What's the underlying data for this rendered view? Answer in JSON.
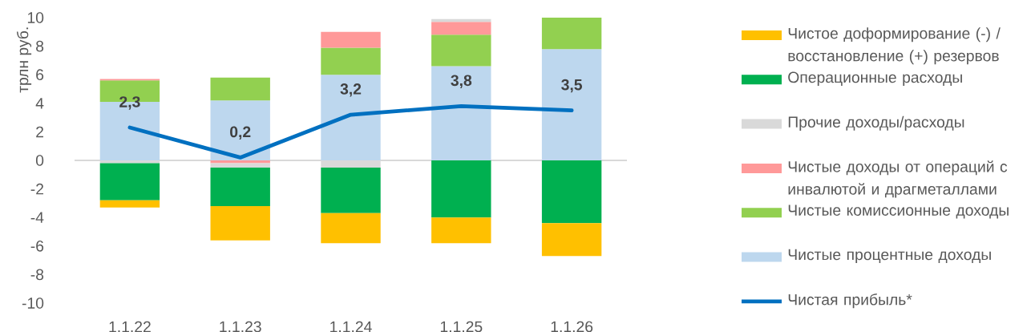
{
  "chart_data": {
    "type": "bar",
    "stacked": true,
    "ylabel": "трлн руб.",
    "categories": [
      "1.1.22",
      "1.1.23",
      "1.1.24",
      "1.1.25",
      "1.1.26"
    ],
    "ylim": [
      -10,
      10
    ],
    "yticks": [
      -10,
      -8,
      -6,
      -4,
      -2,
      0,
      2,
      4,
      6,
      8,
      10
    ],
    "legend": "right",
    "series": [
      {
        "name": "Чистые процентные доходы",
        "color": "#bdd7ee",
        "values": [
          4.1,
          4.2,
          6.0,
          6.6,
          7.8
        ]
      },
      {
        "name": "Чистые комиссионные доходы",
        "color": "#92d050",
        "values": [
          1.5,
          1.6,
          1.9,
          2.2,
          2.2
        ]
      },
      {
        "name": "Чистые доходы от операций с инвалютой и драгметаллами",
        "color": "#ff9999",
        "values": [
          0.1,
          -0.2,
          1.1,
          0.9,
          null
        ]
      },
      {
        "name": "Прочие доходы/расходы",
        "color": "#d9d9d9",
        "values": [
          -0.2,
          -0.3,
          -0.5,
          0.2,
          null
        ]
      },
      {
        "name": "Операционные расходы",
        "color": "#00b050",
        "values": [
          -2.6,
          -2.7,
          -3.2,
          -4.0,
          -4.4
        ]
      },
      {
        "name": "Чистое доформирование (-) / восстановление (+) резервов",
        "color": "#ffc000",
        "values": [
          -0.5,
          -2.4,
          -2.1,
          -1.8,
          -2.3
        ]
      },
      {
        "name": "Чистая прибыль*",
        "type": "line",
        "color": "#0070c0",
        "values": [
          2.3,
          0.2,
          3.2,
          3.8,
          3.5
        ],
        "value_labels": [
          "2,3",
          "0,2",
          "3,2",
          "3,8",
          "3,5"
        ]
      }
    ]
  }
}
